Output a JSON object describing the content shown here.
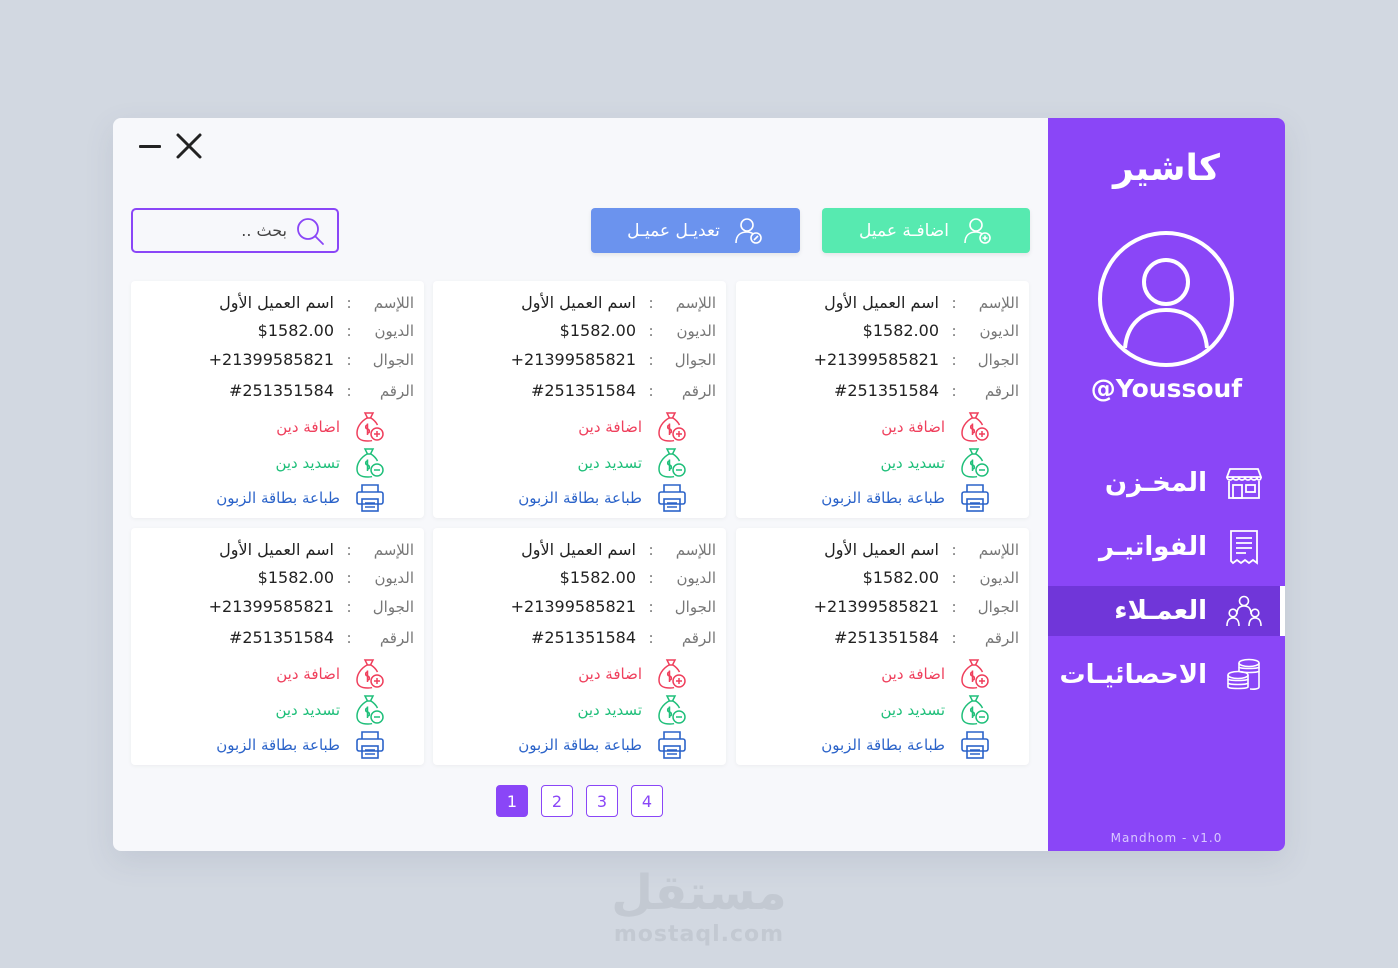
{
  "window": {
    "minimize_label": "",
    "close_label": ""
  },
  "sidebar": {
    "app_title": "كاشير",
    "username": "@Youssouf",
    "items": [
      {
        "label": "المخـزن",
        "icon": "store-icon",
        "active": false
      },
      {
        "label": "الفواتيـر",
        "icon": "invoice-icon",
        "active": false
      },
      {
        "label": "العمـلاء",
        "icon": "clients-icon",
        "active": true
      },
      {
        "label": "الاحصائيـات",
        "icon": "coins-icon",
        "active": false
      }
    ],
    "version": "Mandhom - v1.0"
  },
  "toolbar": {
    "add_client_label": "اضافـة عميل",
    "edit_client_label": "تعديـل عميـل",
    "search_placeholder": "بحث .."
  },
  "cards": [
    {
      "name_label": "اللإسم",
      "name": "اسم العميل الأول",
      "debt_label": "الديون",
      "debt": "$1582.00",
      "phone_label": "الجوال",
      "phone": "+21399585821",
      "id_label": "الرقم",
      "id": "#251351584",
      "add_debt": "اضافة دين",
      "pay_debt": "تسديد دين",
      "print_card": "طباعة بطاقة الزبون"
    },
    {
      "name_label": "اللإسم",
      "name": "اسم العميل الأول",
      "debt_label": "الديون",
      "debt": "$1582.00",
      "phone_label": "الجوال",
      "phone": "+21399585821",
      "id_label": "الرقم",
      "id": "#251351584",
      "add_debt": "اضافة دين",
      "pay_debt": "تسديد دين",
      "print_card": "طباعة بطاقة الزبون"
    },
    {
      "name_label": "اللإسم",
      "name": "اسم العميل الأول",
      "debt_label": "الديون",
      "debt": "$1582.00",
      "phone_label": "الجوال",
      "phone": "+21399585821",
      "id_label": "الرقم",
      "id": "#251351584",
      "add_debt": "اضافة دين",
      "pay_debt": "تسديد دين",
      "print_card": "طباعة بطاقة الزبون"
    },
    {
      "name_label": "اللإسم",
      "name": "اسم العميل الأول",
      "debt_label": "الديون",
      "debt": "$1582.00",
      "phone_label": "الجوال",
      "phone": "+21399585821",
      "id_label": "الرقم",
      "id": "#251351584",
      "add_debt": "اضافة دين",
      "pay_debt": "تسديد دين",
      "print_card": "طباعة بطاقة الزبون"
    },
    {
      "name_label": "اللإسم",
      "name": "اسم العميل الأول",
      "debt_label": "الديون",
      "debt": "$1582.00",
      "phone_label": "الجوال",
      "phone": "+21399585821",
      "id_label": "الرقم",
      "id": "#251351584",
      "add_debt": "اضافة دين",
      "pay_debt": "تسديد دين",
      "print_card": "طباعة بطاقة الزبون"
    },
    {
      "name_label": "اللإسم",
      "name": "اسم العميل الأول",
      "debt_label": "الديون",
      "debt": "$1582.00",
      "phone_label": "الجوال",
      "phone": "+21399585821",
      "id_label": "الرقم",
      "id": "#251351584",
      "add_debt": "اضافة دين",
      "pay_debt": "تسديد دين",
      "print_card": "طباعة بطاقة الزبون"
    }
  ],
  "pagination": {
    "pages": [
      "1",
      "2",
      "3",
      "4"
    ],
    "current": "1"
  },
  "watermark": {
    "logo_text": "مستقل",
    "site": "mostaql.com"
  },
  "colors": {
    "accent": "#8a46f7",
    "add_button": "#57eab0",
    "edit_button": "#6b93ee",
    "debt_add": "#ef3f5c",
    "debt_pay": "#1fbf7a",
    "print": "#2b63c9"
  }
}
